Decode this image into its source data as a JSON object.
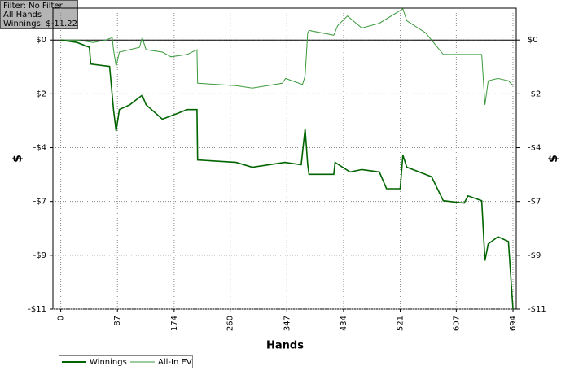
{
  "chart_data": {
    "type": "line",
    "info": [
      "Filter: No Filter",
      "All Hands",
      "Winnings: $-11.22"
    ],
    "x_label": "Hands",
    "y_label": "$",
    "y2_label": "$",
    "xlim": [
      -12,
      699
    ],
    "xticks": [
      0,
      87,
      174,
      260,
      347,
      434,
      521,
      607,
      694
    ],
    "ylim": [
      -11.22,
      1.33
    ],
    "yticks": [
      {
        "value": 0,
        "label": "$0"
      },
      {
        "value": -2.244,
        "label": "-$2"
      },
      {
        "value": -4.488,
        "label": "-$4"
      },
      {
        "value": -6.732,
        "label": "-$7"
      },
      {
        "value": -8.976,
        "label": "-$9"
      },
      {
        "value": -11.22,
        "label": "-$11"
      }
    ],
    "grid": true,
    "zero_line": true,
    "series": [
      {
        "name": "Winnings",
        "color": "#006400",
        "x": [
          0,
          25,
          44,
          46,
          75,
          81,
          85,
          90,
          106,
          125,
          131,
          156,
          175,
          194,
          209,
          210,
          269,
          294,
          344,
          369,
          375,
          379,
          381,
          419,
          421,
          444,
          462,
          489,
          500,
          521,
          525,
          531,
          569,
          587,
          619,
          625,
          646,
          651,
          656,
          671,
          687,
          694
        ],
        "values": [
          0,
          -0.1,
          -0.3,
          -1.0,
          -1.1,
          -2.9,
          -3.8,
          -2.9,
          -2.7,
          -2.3,
          -2.7,
          -3.3,
          -3.1,
          -2.9,
          -2.9,
          -5.0,
          -5.1,
          -5.3,
          -5.1,
          -5.2,
          -3.7,
          -5.2,
          -5.6,
          -5.6,
          -5.1,
          -5.5,
          -5.4,
          -5.5,
          -6.2,
          -6.2,
          -4.8,
          -5.3,
          -5.7,
          -6.7,
          -6.8,
          -6.5,
          -6.7,
          -9.2,
          -8.5,
          -8.2,
          -8.4,
          -11.22
        ]
      },
      {
        "name": "All-In EV",
        "color": "#3c9a3c",
        "x": [
          0,
          25,
          50,
          69,
          79,
          81,
          85,
          90,
          106,
          121,
          125,
          131,
          156,
          169,
          194,
          209,
          210,
          269,
          294,
          340,
          345,
          371,
          375,
          379,
          381,
          419,
          425,
          440,
          462,
          489,
          525,
          531,
          560,
          587,
          619,
          646,
          651,
          656,
          671,
          687,
          694
        ],
        "values": [
          0,
          0,
          -0.1,
          0,
          0.1,
          -0.4,
          -1.1,
          -0.5,
          -0.4,
          -0.3,
          0.1,
          -0.4,
          -0.5,
          -0.7,
          -0.6,
          -0.4,
          -1.8,
          -1.9,
          -2.0,
          -1.8,
          -1.6,
          -1.85,
          -1.5,
          0.3,
          0.4,
          0.2,
          0.6,
          1.0,
          0.5,
          0.7,
          1.3,
          0.8,
          0.3,
          -0.6,
          -0.6,
          -0.6,
          -2.7,
          -1.7,
          -1.6,
          -1.7,
          -1.9
        ]
      }
    ]
  }
}
